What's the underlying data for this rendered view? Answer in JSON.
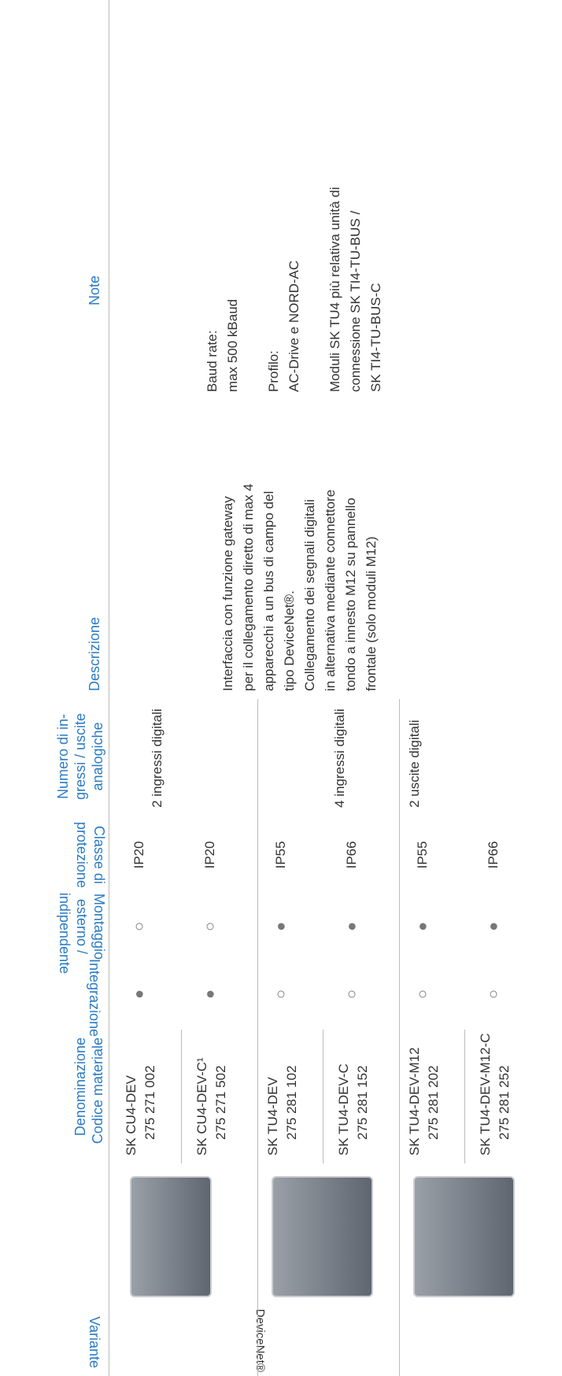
{
  "header": {
    "variante": "Variante",
    "denominazione": [
      "Denominazione",
      "Codice materiale"
    ],
    "integrazione": "Integrazione",
    "montaggio": [
      "Montaggio",
      "esterno /",
      "indipendente"
    ],
    "classe": [
      "Classe di",
      "protezione"
    ],
    "io": [
      "Numero di in-",
      "gressi / uscite",
      "analogiche"
    ],
    "descrizione": "Descrizione",
    "note": "Note"
  },
  "variant_group": "DeviceNet®",
  "rows": [
    {
      "name": "SK CU4-DEV",
      "code": "275 271 002",
      "integrazione": "●",
      "montaggio": "○",
      "classe": "IP20"
    },
    {
      "name": "SK CU4-DEV-C¹",
      "code": "275 271 502",
      "integrazione": "●",
      "montaggio": "○",
      "classe": "IP20"
    },
    {
      "name": "SK TU4-DEV",
      "code": "275 281 102",
      "integrazione": "○",
      "montaggio": "●",
      "classe": "IP55"
    },
    {
      "name": "SK TU4-DEV-C",
      "code": "275 281 152",
      "integrazione": "○",
      "montaggio": "●",
      "classe": "IP66"
    },
    {
      "name": "SK TU4-DEV-M12",
      "code": "275 281 202",
      "integrazione": "○",
      "montaggio": "●",
      "classe": "IP55"
    },
    {
      "name": "SK TU4-DEV-M12-C",
      "code": "275 281 252",
      "integrazione": "○",
      "montaggio": "●",
      "classe": "IP66"
    }
  ],
  "io": [
    "2 ingressi digitali",
    "4 ingressi digitali",
    "2 uscite digitali"
  ],
  "descrizione": [
    "Interfaccia con funzione gateway",
    "per il collegamento diretto di max 4",
    "apparecchi a un bus di campo del",
    "tipo DeviceNet®.",
    "Collegamento dei segnali digitali",
    "in alternativa mediante connettore",
    "tondo a innesto M12 su pannello",
    "frontale (solo moduli M12)"
  ],
  "note": [
    [
      "Baud rate:",
      "max 500 kBaud"
    ],
    [
      "Profilo:",
      "AC-Drive e NORD-AC"
    ],
    [
      "Moduli SK TU4 più relativa unità di",
      "connessione SK TI4-TU-BUS /",
      "SK TI4-TU-BUS-C"
    ]
  ]
}
